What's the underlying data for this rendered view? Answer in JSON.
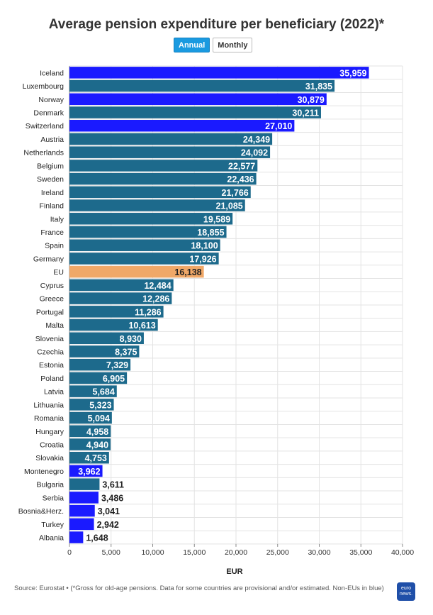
{
  "chart_data": {
    "type": "bar",
    "orientation": "horizontal",
    "title": "Average pension expenditure per beneficiary (2022)*",
    "toggle": {
      "active": "Annual",
      "inactive": "Monthly"
    },
    "xlabel": "EUR",
    "xlim": [
      0,
      40000
    ],
    "x_ticks": [
      "0",
      "5,000",
      "10,000",
      "15,000",
      "20,000",
      "25,000",
      "30,000",
      "35,000",
      "40,000"
    ],
    "grid": true,
    "colors": {
      "eu_member": "#1d6a8c",
      "non_eu": "#1a1aff",
      "eu_average": "#f0a868"
    },
    "categories": [
      "Iceland",
      "Luxembourg",
      "Norway",
      "Denmark",
      "Switzerland",
      "Austria",
      "Netherlands",
      "Belgium",
      "Sweden",
      "Ireland",
      "Finland",
      "Italy",
      "France",
      "Spain",
      "Germany",
      "EU",
      "Cyprus",
      "Greece",
      "Portugal",
      "Malta",
      "Slovenia",
      "Czechia",
      "Estonia",
      "Poland",
      "Latvia",
      "Lithuania",
      "Romania",
      "Hungary",
      "Croatia",
      "Slovakia",
      "Montenegro",
      "Bulgaria",
      "Serbia",
      "Bosnia&Herz.",
      "Turkey",
      "Albania"
    ],
    "values": [
      35959,
      31835,
      30879,
      30211,
      27010,
      24349,
      24092,
      22577,
      22436,
      21766,
      21085,
      19589,
      18855,
      18100,
      17926,
      16138,
      12484,
      12286,
      11286,
      10613,
      8930,
      8375,
      7329,
      6905,
      5684,
      5323,
      5094,
      4958,
      4940,
      4753,
      3962,
      3611,
      3486,
      3041,
      2942,
      1648
    ],
    "value_labels": [
      "35,959",
      "31,835",
      "30,879",
      "30,211",
      "27,010",
      "24,349",
      "24,092",
      "22,577",
      "22,436",
      "21,766",
      "21,085",
      "19,589",
      "18,855",
      "18,100",
      "17,926",
      "16,138",
      "12,484",
      "12,286",
      "11,286",
      "10,613",
      "8,930",
      "8,375",
      "7,329",
      "6,905",
      "5,684",
      "5,323",
      "5,094",
      "4,958",
      "4,940",
      "4,753",
      "3,962",
      "3,611",
      "3,486",
      "3,041",
      "2,942",
      "1,648"
    ],
    "group": [
      "non_eu",
      "eu_member",
      "non_eu",
      "eu_member",
      "non_eu",
      "eu_member",
      "eu_member",
      "eu_member",
      "eu_member",
      "eu_member",
      "eu_member",
      "eu_member",
      "eu_member",
      "eu_member",
      "eu_member",
      "eu_average",
      "eu_member",
      "eu_member",
      "eu_member",
      "eu_member",
      "eu_member",
      "eu_member",
      "eu_member",
      "eu_member",
      "eu_member",
      "eu_member",
      "eu_member",
      "eu_member",
      "eu_member",
      "eu_member",
      "non_eu",
      "eu_member",
      "non_eu",
      "non_eu",
      "non_eu",
      "non_eu"
    ]
  },
  "footer": {
    "source": "Source: Eurostat • (*Gross for old-age pensions. Data for some countries are provisional and/or estimated. Non-EUs in blue)",
    "logo_text": "euro news."
  }
}
